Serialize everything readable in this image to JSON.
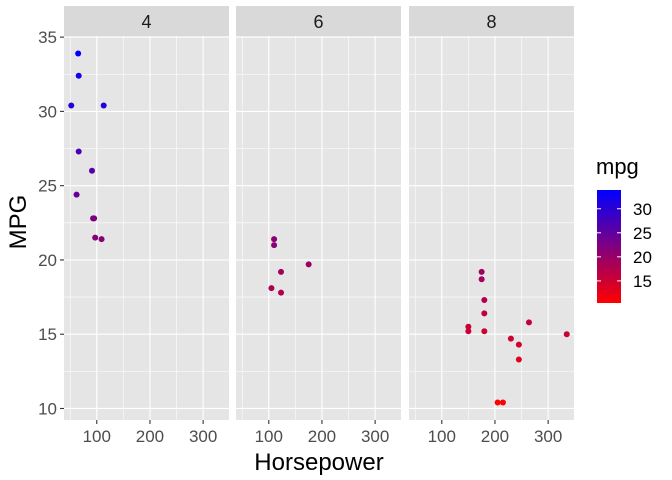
{
  "chart_data": {
    "type": "scatter",
    "facet_by": "cyl",
    "facets": [
      {
        "label": "4",
        "points": [
          {
            "x": 93,
            "y": 22.8
          },
          {
            "x": 62,
            "y": 24.4
          },
          {
            "x": 95,
            "y": 22.8
          },
          {
            "x": 66,
            "y": 32.4
          },
          {
            "x": 52,
            "y": 30.4
          },
          {
            "x": 65,
            "y": 33.9
          },
          {
            "x": 97,
            "y": 21.5
          },
          {
            "x": 66,
            "y": 27.3
          },
          {
            "x": 91,
            "y": 26.0
          },
          {
            "x": 113,
            "y": 30.4
          },
          {
            "x": 109,
            "y": 21.4
          }
        ]
      },
      {
        "label": "6",
        "points": [
          {
            "x": 110,
            "y": 21.0
          },
          {
            "x": 110,
            "y": 21.4
          },
          {
            "x": 105,
            "y": 18.1
          },
          {
            "x": 123,
            "y": 19.2
          },
          {
            "x": 123,
            "y": 17.8
          },
          {
            "x": 175,
            "y": 19.7
          }
        ]
      },
      {
        "label": "8",
        "points": [
          {
            "x": 175,
            "y": 18.7
          },
          {
            "x": 245,
            "y": 14.3
          },
          {
            "x": 180,
            "y": 16.4
          },
          {
            "x": 180,
            "y": 17.3
          },
          {
            "x": 180,
            "y": 15.2
          },
          {
            "x": 205,
            "y": 10.4
          },
          {
            "x": 215,
            "y": 10.4
          },
          {
            "x": 230,
            "y": 14.7
          },
          {
            "x": 150,
            "y": 15.5
          },
          {
            "x": 150,
            "y": 15.2
          },
          {
            "x": 245,
            "y": 13.3
          },
          {
            "x": 175,
            "y": 19.2
          },
          {
            "x": 264,
            "y": 15.8
          },
          {
            "x": 335,
            "y": 15.0
          }
        ]
      }
    ],
    "xlabel": "Horsepower",
    "ylabel": "MPG",
    "x_ticks": [
      100,
      200,
      300
    ],
    "x_tick_labels": [
      "100",
      "200",
      "300"
    ],
    "y_ticks": [
      10,
      15,
      20,
      25,
      30,
      35
    ],
    "y_tick_labels": [
      "10",
      "15",
      "20",
      "25",
      "30",
      "35"
    ],
    "xlim": [
      38.35,
      348.65
    ],
    "ylim": [
      9.225,
      35.075
    ],
    "grid": true,
    "legend": {
      "title": "mpg",
      "position": "right",
      "type": "colorbar",
      "range": [
        10.4,
        33.9
      ],
      "ticks": [
        15,
        20,
        25,
        30
      ],
      "tick_labels": [
        "15",
        "20",
        "25",
        "30"
      ],
      "low_color": "#ff0000",
      "high_color": "#0000ff"
    },
    "colors": {
      "panel_background": "#e5e5e5",
      "strip_background": "#d9d9d9",
      "grid_major": "#ffffff"
    }
  }
}
